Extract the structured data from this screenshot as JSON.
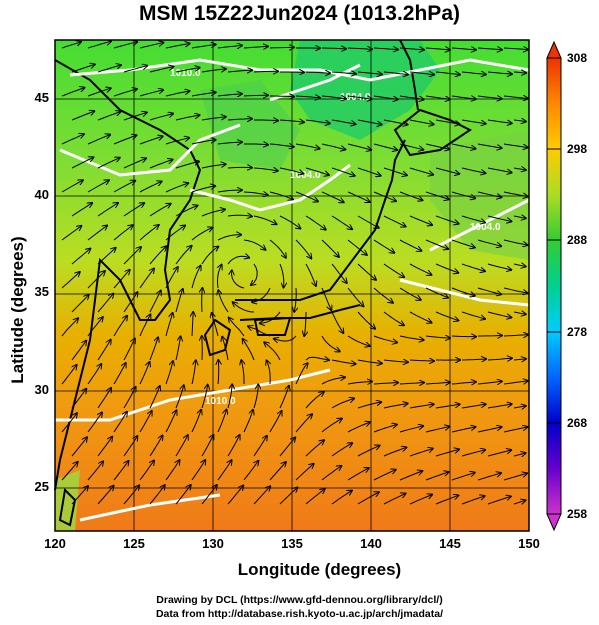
{
  "title": "MSM 15Z22Jun2024 (1013.2hPa)",
  "x_axis": {
    "label": "Longitude (degrees)",
    "ticks": [
      "120",
      "125",
      "130",
      "135",
      "140",
      "145",
      "150"
    ],
    "range": [
      120,
      150
    ]
  },
  "y_axis": {
    "label": "Latitude  (degrees)",
    "ticks": [
      "25",
      "30",
      "35",
      "40",
      "45"
    ],
    "range": [
      22.4,
      47.6
    ]
  },
  "colorbar": {
    "ticks": [
      "308",
      "298",
      "288",
      "278",
      "268",
      "258"
    ],
    "range": [
      258,
      308
    ],
    "colors": [
      "#cc33cc",
      "#6600cc",
      "#0000cc",
      "#0066ff",
      "#00ccff",
      "#00e0c0",
      "#00d060",
      "#33cc33",
      "#88dd22",
      "#cccc00",
      "#ffcc00",
      "#ff9900",
      "#ff6600",
      "#ee3300"
    ]
  },
  "contour_labels": [
    "1010.0",
    "1004.0",
    "1004.0",
    "1004.0",
    "1010.0"
  ],
  "footer": {
    "line1": "Drawing by DCL (https://www.gfd-dennou.org/library/dcl/)",
    "line2": "Data from http://database.rish.kyoto-u.ac.jp/arch/jmadata/"
  }
}
